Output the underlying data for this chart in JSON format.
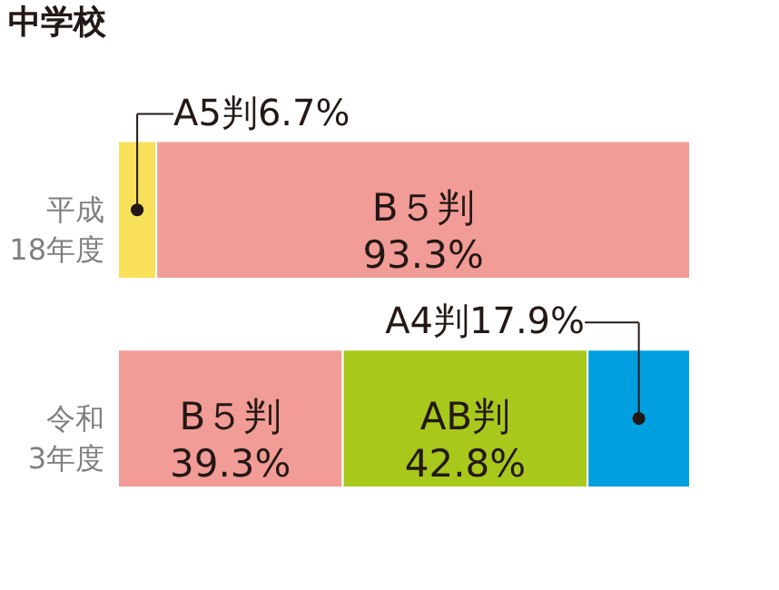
{
  "chart_data": {
    "type": "bar",
    "orientation": "horizontal",
    "stacked": true,
    "title": "中学校",
    "categories": [
      "平成\n18年度",
      "令和\n3年度"
    ],
    "series": [
      {
        "color": "#f9e05a",
        "values": [
          6.7,
          null
        ],
        "value_labels": [
          "A5判6.7%",
          null
        ]
      },
      {
        "color": "#f29c97",
        "values": [
          93.3,
          39.3
        ],
        "value_labels": [
          "B５判\n93.3%",
          "B５判\n39.3%"
        ]
      },
      {
        "color": "#a8c81c",
        "values": [
          null,
          42.8
        ],
        "value_labels": [
          null,
          "AB判\n42.8%"
        ]
      },
      {
        "color": "#00a0e0",
        "values": [
          null,
          17.9
        ],
        "value_labels": [
          null,
          "A4判17.9%"
        ]
      }
    ],
    "grid": false
  }
}
